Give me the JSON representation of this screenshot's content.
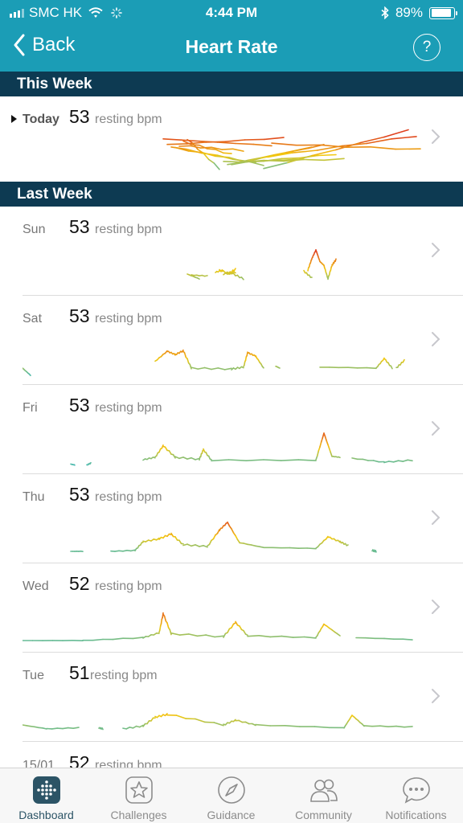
{
  "status_bar": {
    "carrier": "SMC HK",
    "time": "4:44 PM",
    "battery": "89%",
    "battery_level": 0.89,
    "icons": [
      "signal-icon",
      "wifi-icon",
      "activity-spinner-icon",
      "bluetooth-icon",
      "battery-icon"
    ]
  },
  "nav": {
    "back_label": "Back",
    "title": "Heart Rate",
    "help_label": "?"
  },
  "colors": {
    "header": "#1b9db6",
    "section": "#0d3a52",
    "low": "#35b7c4",
    "mid": "#f2c80f",
    "high": "#e0411f"
  },
  "sections": {
    "this_week": "This Week",
    "last_week": "Last Week"
  },
  "days": [
    {
      "label": "Today",
      "value": "53",
      "unit": "resting bpm",
      "spark": [
        [
          0.35,
          0.62,
          0.72,
          0.58
        ],
        [
          0.36,
          0.65,
          0.6,
          0.74
        ],
        [
          0.37,
          0.6,
          0.56,
          0.18
        ],
        [
          0.38,
          0.58,
          0.53,
          0.22
        ],
        [
          0.39,
          0.55,
          0.58,
          0.48
        ],
        [
          0.4,
          0.52,
          0.66,
          0.4
        ],
        [
          0.41,
          0.49,
          0.72,
          0.1
        ],
        [
          0.5,
          0.8,
          0.24,
          0.3
        ],
        [
          0.51,
          0.78,
          0.2,
          0.4
        ],
        [
          0.52,
          0.75,
          0.18,
          0.6
        ],
        [
          0.53,
          0.72,
          0.22,
          0.55
        ],
        [
          0.54,
          0.7,
          0.24,
          0.3
        ],
        [
          0.6,
          0.96,
          0.1,
          0.9
        ],
        [
          0.61,
          0.98,
          0.35,
          0.78
        ],
        [
          0.62,
          0.99,
          0.62,
          0.5
        ]
      ]
    },
    {
      "label": "Sun",
      "value": "53",
      "unit": "resting bpm",
      "spark": [
        [
          0.41,
          0.44,
          0.3,
          0.2
        ],
        [
          0.42,
          0.46,
          0.28,
          0.26
        ],
        [
          0.48,
          0.5,
          0.34,
          0.38
        ],
        [
          0.49,
          0.52,
          0.38,
          0.3
        ],
        [
          0.5,
          0.53,
          0.3,
          0.34
        ],
        [
          0.51,
          0.53,
          0.3,
          0.4
        ],
        [
          0.52,
          0.55,
          0.32,
          0.2
        ],
        [
          0.7,
          0.72,
          0.36,
          0.22
        ],
        [
          0.71,
          0.72,
          0.38,
          0.62
        ],
        [
          0.72,
          0.73,
          0.62,
          0.8
        ],
        [
          0.73,
          0.74,
          0.8,
          0.56
        ],
        [
          0.74,
          0.75,
          0.56,
          0.48
        ],
        [
          0.75,
          0.76,
          0.48,
          0.2
        ],
        [
          0.76,
          0.77,
          0.2,
          0.48
        ],
        [
          0.77,
          0.78,
          0.48,
          0.6
        ]
      ]
    },
    {
      "label": "Sat",
      "value": "53",
      "unit": "resting bpm",
      "spark": [
        [
          0.0,
          0.02,
          0.2,
          0.05
        ],
        [
          0.33,
          0.36,
          0.34,
          0.55
        ],
        [
          0.36,
          0.38,
          0.55,
          0.48
        ],
        [
          0.38,
          0.4,
          0.48,
          0.56
        ],
        [
          0.4,
          0.42,
          0.56,
          0.2
        ],
        [
          0.42,
          0.52,
          0.2,
          0.18
        ],
        [
          0.52,
          0.55,
          0.18,
          0.22
        ],
        [
          0.55,
          0.56,
          0.22,
          0.52
        ],
        [
          0.56,
          0.58,
          0.52,
          0.45
        ],
        [
          0.58,
          0.6,
          0.45,
          0.2
        ],
        [
          0.63,
          0.64,
          0.24,
          0.2
        ],
        [
          0.74,
          0.88,
          0.22,
          0.2
        ],
        [
          0.88,
          0.9,
          0.2,
          0.4
        ],
        [
          0.9,
          0.92,
          0.4,
          0.2
        ],
        [
          0.93,
          0.95,
          0.2,
          0.36
        ]
      ]
    },
    {
      "label": "Fri",
      "value": "53",
      "unit": "resting bpm",
      "spark": [
        [
          0.12,
          0.13,
          0.06,
          0.04
        ],
        [
          0.16,
          0.17,
          0.04,
          0.08
        ],
        [
          0.3,
          0.33,
          0.15,
          0.2
        ],
        [
          0.33,
          0.35,
          0.2,
          0.44
        ],
        [
          0.35,
          0.38,
          0.44,
          0.2
        ],
        [
          0.38,
          0.44,
          0.2,
          0.16
        ],
        [
          0.44,
          0.45,
          0.16,
          0.36
        ],
        [
          0.45,
          0.47,
          0.36,
          0.14
        ],
        [
          0.47,
          0.73,
          0.14,
          0.14
        ],
        [
          0.73,
          0.75,
          0.14,
          0.7
        ],
        [
          0.75,
          0.77,
          0.7,
          0.22
        ],
        [
          0.77,
          0.79,
          0.22,
          0.2
        ],
        [
          0.82,
          0.9,
          0.18,
          0.1
        ],
        [
          0.9,
          0.97,
          0.1,
          0.14
        ]
      ]
    },
    {
      "label": "Thu",
      "value": "53",
      "unit": "resting bpm",
      "spark": [
        [
          0.12,
          0.15,
          0.1,
          0.1
        ],
        [
          0.22,
          0.28,
          0.1,
          0.12
        ],
        [
          0.28,
          0.3,
          0.12,
          0.3
        ],
        [
          0.3,
          0.34,
          0.3,
          0.36
        ],
        [
          0.34,
          0.37,
          0.36,
          0.46
        ],
        [
          0.37,
          0.4,
          0.46,
          0.24
        ],
        [
          0.4,
          0.46,
          0.24,
          0.2
        ],
        [
          0.46,
          0.49,
          0.2,
          0.54
        ],
        [
          0.49,
          0.51,
          0.54,
          0.7
        ],
        [
          0.51,
          0.54,
          0.7,
          0.28
        ],
        [
          0.54,
          0.6,
          0.28,
          0.18
        ],
        [
          0.6,
          0.73,
          0.18,
          0.16
        ],
        [
          0.73,
          0.76,
          0.16,
          0.4
        ],
        [
          0.76,
          0.79,
          0.4,
          0.3
        ],
        [
          0.79,
          0.81,
          0.3,
          0.22
        ],
        [
          0.87,
          0.88,
          0.12,
          0.1
        ]
      ]
    },
    {
      "label": "Wed",
      "value": "52",
      "unit": "resting bpm",
      "spark": [
        [
          0.0,
          0.15,
          0.1,
          0.1
        ],
        [
          0.15,
          0.3,
          0.1,
          0.16
        ],
        [
          0.3,
          0.34,
          0.16,
          0.26
        ],
        [
          0.34,
          0.35,
          0.26,
          0.66
        ],
        [
          0.35,
          0.37,
          0.66,
          0.24
        ],
        [
          0.37,
          0.5,
          0.24,
          0.18
        ],
        [
          0.5,
          0.53,
          0.18,
          0.48
        ],
        [
          0.53,
          0.56,
          0.48,
          0.2
        ],
        [
          0.56,
          0.73,
          0.2,
          0.16
        ],
        [
          0.73,
          0.75,
          0.16,
          0.44
        ],
        [
          0.75,
          0.79,
          0.44,
          0.2
        ],
        [
          0.83,
          0.97,
          0.16,
          0.12
        ]
      ]
    },
    {
      "label": "Tue",
      "value": "51",
      "unit": "resting bpm",
      "spark": [
        [
          0.0,
          0.06,
          0.2,
          0.12
        ],
        [
          0.06,
          0.14,
          0.12,
          0.14
        ],
        [
          0.19,
          0.2,
          0.14,
          0.12
        ],
        [
          0.25,
          0.3,
          0.12,
          0.18
        ],
        [
          0.3,
          0.33,
          0.18,
          0.36
        ],
        [
          0.33,
          0.36,
          0.36,
          0.42
        ],
        [
          0.36,
          0.5,
          0.42,
          0.2
        ],
        [
          0.5,
          0.53,
          0.2,
          0.3
        ],
        [
          0.53,
          0.58,
          0.3,
          0.2
        ],
        [
          0.58,
          0.8,
          0.2,
          0.14
        ],
        [
          0.8,
          0.82,
          0.14,
          0.4
        ],
        [
          0.82,
          0.85,
          0.4,
          0.18
        ],
        [
          0.85,
          0.97,
          0.18,
          0.16
        ]
      ]
    }
  ],
  "cut_off_row": {
    "label": "15/01",
    "value": "52",
    "unit": "resting bpm"
  },
  "tabs": [
    {
      "label": "Dashboard",
      "icon": "dashboard-icon",
      "active": true
    },
    {
      "label": "Challenges",
      "icon": "challenges-star-icon",
      "active": false
    },
    {
      "label": "Guidance",
      "icon": "guidance-compass-icon",
      "active": false
    },
    {
      "label": "Community",
      "icon": "community-people-icon",
      "active": false
    },
    {
      "label": "Notifications",
      "icon": "notifications-chat-icon",
      "active": false
    }
  ]
}
